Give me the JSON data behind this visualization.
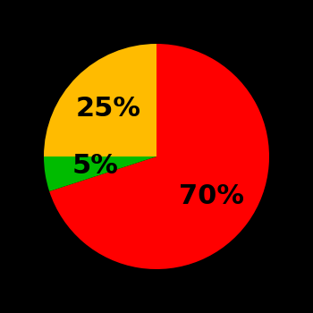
{
  "slices": [
    70,
    5,
    25
  ],
  "colors": [
    "#ff0000",
    "#00bb00",
    "#ffbb00"
  ],
  "labels": [
    "70%",
    "5%",
    "25%"
  ],
  "label_color": "#000000",
  "background_color": "#000000",
  "startangle": 90,
  "label_fontsize": 22,
  "label_fontweight": "bold",
  "label_radii": [
    0.62,
    0.62,
    0.62
  ]
}
